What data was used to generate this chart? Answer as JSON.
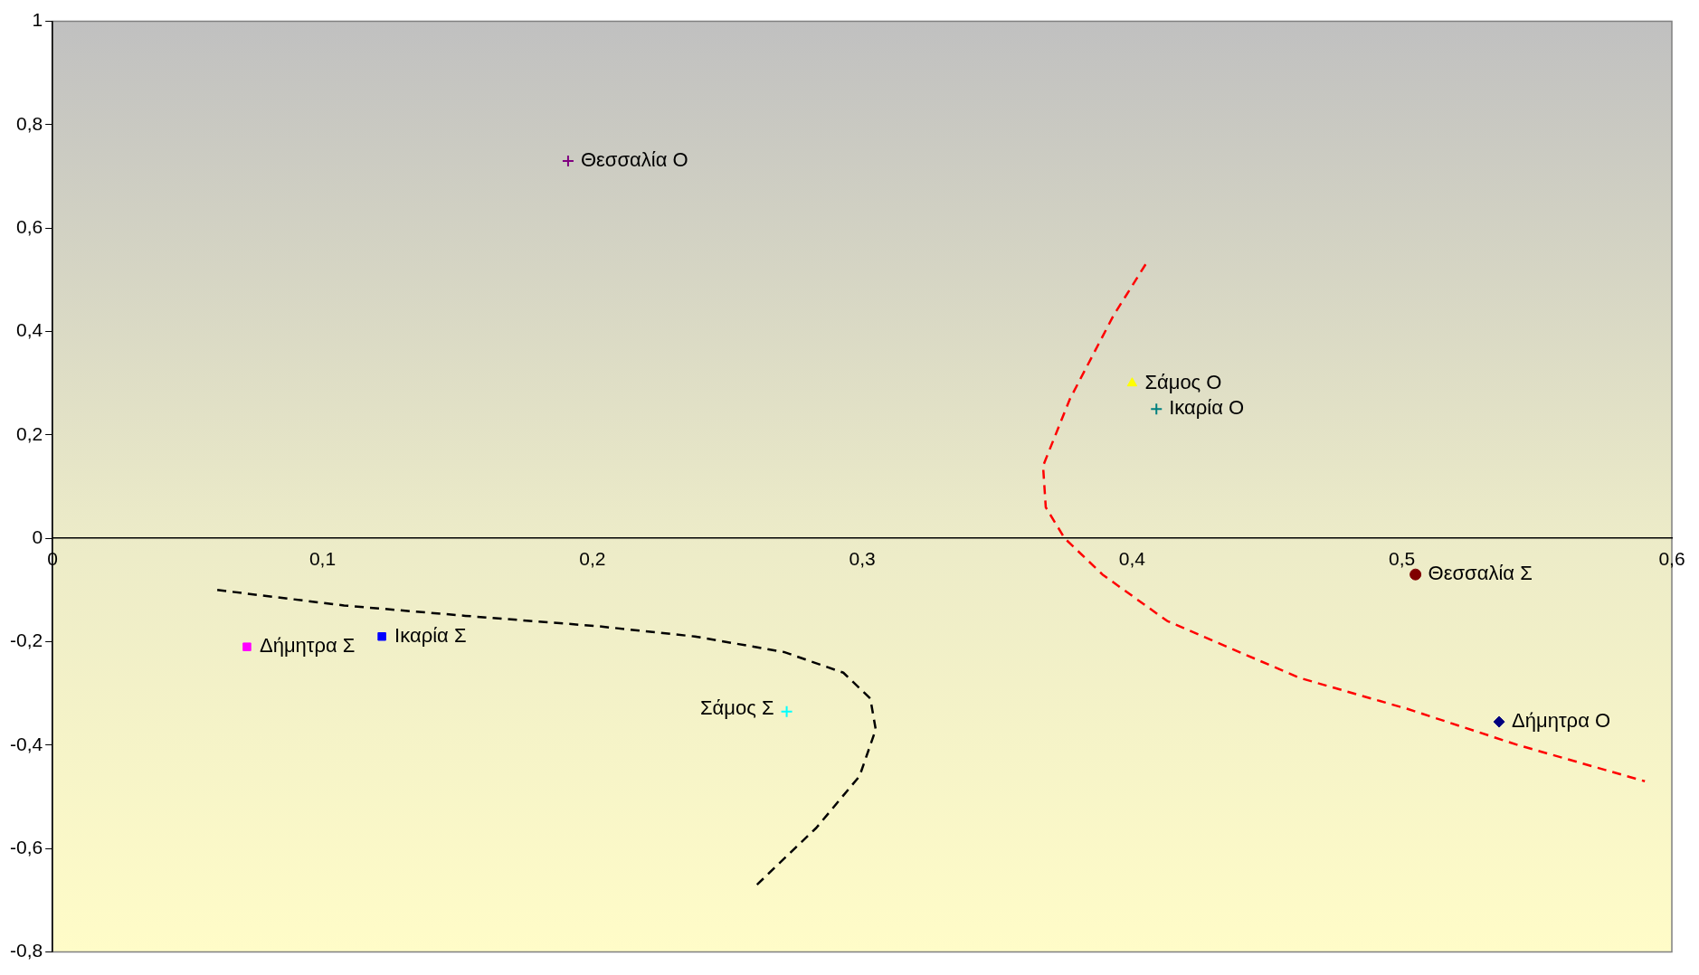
{
  "chart_data": {
    "type": "scatter",
    "legend": false,
    "grid": false,
    "xlim": [
      0,
      0.6
    ],
    "xticks": [
      0,
      {
        "value": 0.1,
        "label": "0,1"
      },
      {
        "value": 0.2,
        "label": "0,2"
      },
      {
        "value": 0.3,
        "label": "0,3"
      },
      {
        "value": 0.4,
        "label": "0,4"
      },
      {
        "value": 0.5,
        "label": "0,5"
      },
      {
        "value": 0.6,
        "label": "0,6"
      }
    ],
    "ylim": [
      -0.8,
      1
    ],
    "yticks": [
      {
        "value": -0.8,
        "label": "-0,8"
      },
      {
        "value": -0.6,
        "label": "-0,6"
      },
      {
        "value": -0.4,
        "label": "-0,4"
      },
      {
        "value": -0.2,
        "label": "-0,2"
      },
      0,
      {
        "value": 0.2,
        "label": "0,2"
      },
      {
        "value": 0.4,
        "label": "0,4"
      },
      {
        "value": 0.6,
        "label": "0,6"
      },
      {
        "value": 0.8,
        "label": "0,8"
      },
      1
    ],
    "series": [
      {
        "name": "Θεσσαλία Ο",
        "color": "#800080",
        "marker": "cross",
        "x": [
          0.191
        ],
        "values": [
          0.73
        ]
      },
      {
        "name": "Σάμος Ο",
        "color": "#ffff00",
        "marker": "triangle",
        "x": [
          0.4
        ],
        "values": [
          0.3
        ]
      },
      {
        "name": "Ικαρία Ο",
        "color": "#008080",
        "marker": "cross",
        "x": [
          0.409
        ],
        "values": [
          0.25
        ]
      },
      {
        "name": "Θεσσαλία Σ",
        "color": "#800000",
        "marker": "circle",
        "x": [
          0.505
        ],
        "values": [
          -0.07
        ]
      },
      {
        "name": "Δήμητρα Ο",
        "color": "#000080",
        "marker": "diamond",
        "x": [
          0.536
        ],
        "values": [
          -0.355
        ]
      },
      {
        "name": "Δήμητρα Σ",
        "color": "#ff00ff",
        "marker": "square",
        "x": [
          0.072
        ],
        "values": [
          -0.21
        ]
      },
      {
        "name": "Ικαρία Σ",
        "color": "#0000ff",
        "marker": "square",
        "x": [
          0.122
        ],
        "values": [
          -0.19
        ]
      },
      {
        "name": "Σάμος Σ",
        "color": "#00ffff",
        "marker": "cross",
        "x": [
          0.272
        ],
        "values": [
          -0.335
        ]
      },
      {
        "type": "line",
        "color": "#ff0000",
        "line_style": "dashed",
        "marker": "none",
        "x": [
          0.405,
          0.393,
          0.377,
          0.367,
          0.368,
          0.375,
          0.389,
          0.413,
          0.462,
          0.502,
          0.543,
          0.59
        ],
        "values": [
          0.53,
          0.43,
          0.27,
          0.14,
          0.06,
          0,
          -0.07,
          -0.16,
          -0.27,
          -0.33,
          -0.4,
          -0.47
        ]
      },
      {
        "type": "line",
        "color": "#000000",
        "line_style": "dashed",
        "marker": "none",
        "x": [
          0.061,
          0.108,
          0.153,
          0.202,
          0.238,
          0.271,
          0.293,
          0.303,
          0.305,
          0.299,
          0.283,
          0.261
        ],
        "values": [
          -0.1,
          -0.13,
          -0.15,
          -0.17,
          -0.19,
          -0.22,
          -0.26,
          -0.31,
          -0.37,
          -0.46,
          -0.56,
          -0.67
        ]
      }
    ]
  }
}
